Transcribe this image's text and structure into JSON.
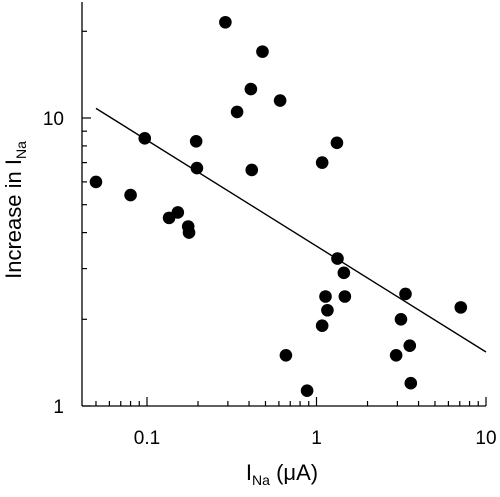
{
  "chart_data": {
    "type": "scatter",
    "title": "",
    "xlabel": {
      "main": "I",
      "subscript": "Na",
      "unit": " (μA)"
    },
    "ylabel": {
      "main": "Increase in I",
      "subscript": "Na"
    },
    "x_scale": "log",
    "y_scale": "log",
    "xlim": [
      0.04,
      10
    ],
    "ylim": [
      1,
      25
    ],
    "x_ticks": [
      {
        "value": 0.1,
        "label": "0.1"
      },
      {
        "value": 1,
        "label": "1"
      },
      {
        "value": 10,
        "label": "10"
      }
    ],
    "y_ticks": [
      {
        "value": 1,
        "label": "1"
      },
      {
        "value": 10,
        "label": "10"
      }
    ],
    "grid": false,
    "marker_color": "#000000",
    "points": [
      {
        "x": 0.05,
        "y": 6.0
      },
      {
        "x": 0.08,
        "y": 5.4
      },
      {
        "x": 0.097,
        "y": 8.5
      },
      {
        "x": 0.135,
        "y": 4.5
      },
      {
        "x": 0.152,
        "y": 4.7
      },
      {
        "x": 0.175,
        "y": 4.2
      },
      {
        "x": 0.177,
        "y": 4.0
      },
      {
        "x": 0.195,
        "y": 8.3
      },
      {
        "x": 0.197,
        "y": 6.7
      },
      {
        "x": 0.29,
        "y": 21.5
      },
      {
        "x": 0.34,
        "y": 10.5
      },
      {
        "x": 0.41,
        "y": 12.6
      },
      {
        "x": 0.415,
        "y": 6.6
      },
      {
        "x": 0.48,
        "y": 17.0
      },
      {
        "x": 0.61,
        "y": 11.5
      },
      {
        "x": 0.66,
        "y": 1.5
      },
      {
        "x": 0.88,
        "y": 1.13
      },
      {
        "x": 1.08,
        "y": 7.0
      },
      {
        "x": 1.08,
        "y": 1.9
      },
      {
        "x": 1.13,
        "y": 2.4
      },
      {
        "x": 1.16,
        "y": 2.15
      },
      {
        "x": 1.32,
        "y": 8.2
      },
      {
        "x": 1.33,
        "y": 3.25
      },
      {
        "x": 1.45,
        "y": 2.9
      },
      {
        "x": 1.47,
        "y": 2.4
      },
      {
        "x": 2.95,
        "y": 1.5
      },
      {
        "x": 3.15,
        "y": 2.0
      },
      {
        "x": 3.35,
        "y": 2.45
      },
      {
        "x": 3.55,
        "y": 1.62
      },
      {
        "x": 3.6,
        "y": 1.2
      },
      {
        "x": 7.1,
        "y": 2.2
      }
    ],
    "fit_line": {
      "x": [
        0.05,
        10
      ],
      "y": [
        10.8,
        1.54
      ]
    }
  }
}
